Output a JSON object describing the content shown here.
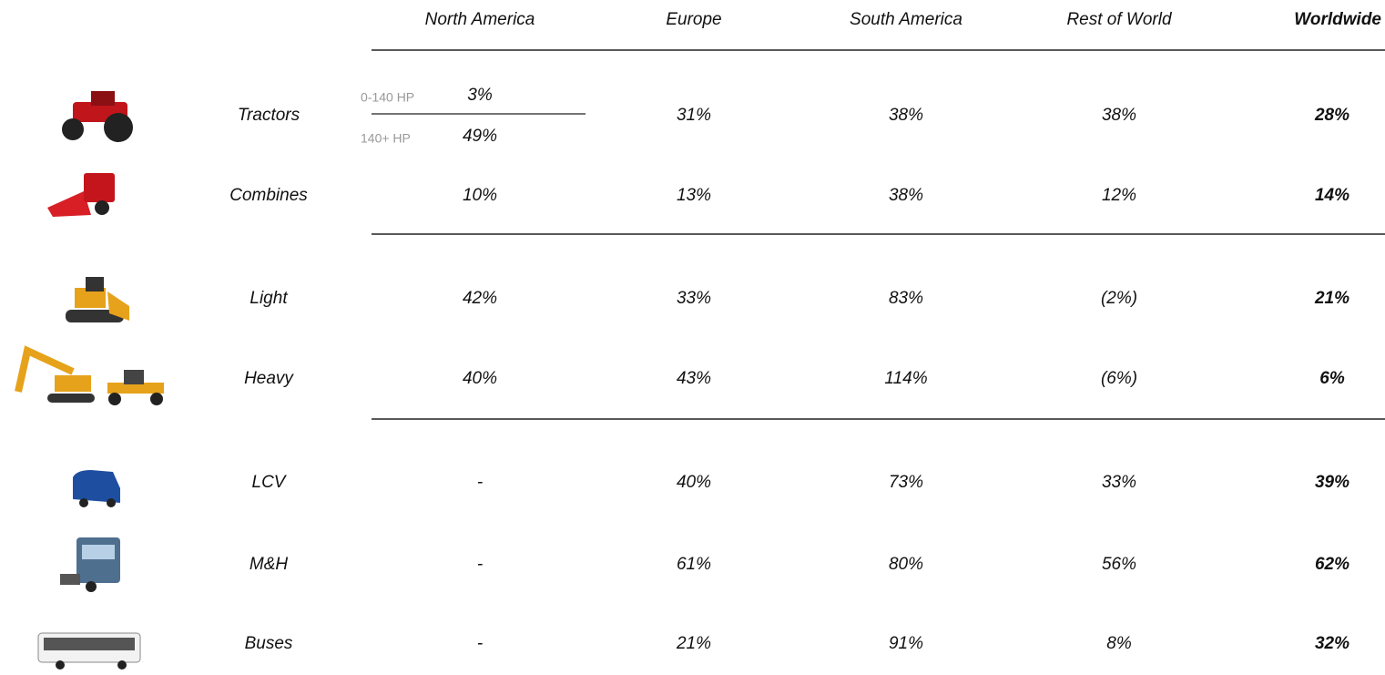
{
  "table": {
    "headers": [
      "North America",
      "Europe",
      "South America",
      "Rest of World",
      "Worldwide"
    ],
    "rows": [
      {
        "label": "Tractors",
        "cells": [
          {
            "segments": [
              {
                "label": "0-140 HP",
                "value": "3%"
              },
              {
                "label": "140+ HP",
                "value": "49%"
              }
            ]
          },
          "31%",
          "38%",
          "38%",
          "28%"
        ]
      },
      {
        "label": "Combines",
        "cells": [
          "10%",
          "13%",
          "38%",
          "12%",
          "14%"
        ]
      },
      {
        "label": "Light",
        "cells": [
          "42%",
          "33%",
          "83%",
          "(2%)",
          "21%"
        ]
      },
      {
        "label": "Heavy",
        "cells": [
          "40%",
          "43%",
          "114%",
          "(6%)",
          "6%"
        ]
      },
      {
        "label": "LCV",
        "cells": [
          "-",
          "40%",
          "73%",
          "33%",
          "39%"
        ]
      },
      {
        "label": "M&H",
        "cells": [
          "-",
          "61%",
          "80%",
          "56%",
          "62%"
        ]
      },
      {
        "label": "Buses",
        "cells": [
          "-",
          "21%",
          "91%",
          "8%",
          "32%"
        ]
      }
    ]
  }
}
